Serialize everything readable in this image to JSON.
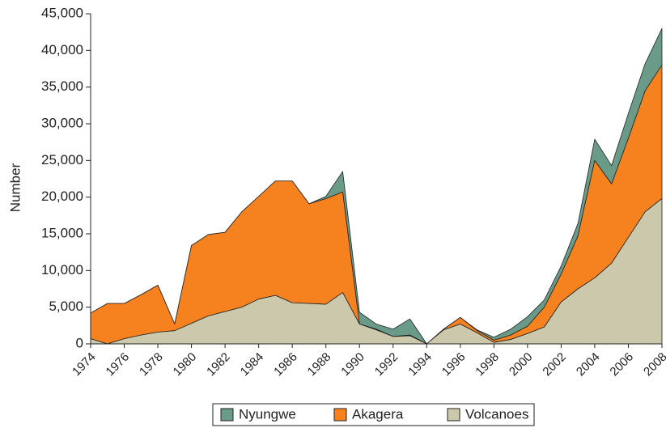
{
  "chart_data": {
    "type": "area",
    "stacked": true,
    "y_label": "Number",
    "x": [
      1974,
      1975,
      1976,
      1977,
      1978,
      1979,
      1980,
      1981,
      1982,
      1983,
      1984,
      1985,
      1986,
      1987,
      1988,
      1989,
      1990,
      1991,
      1992,
      1993,
      1994,
      1995,
      1996,
      1997,
      1998,
      1999,
      2000,
      2001,
      2002,
      2003,
      2004,
      2005,
      2006,
      2007,
      2008
    ],
    "series": [
      {
        "name": "Volcanoes",
        "color": "#cbc8ab",
        "values": [
          700,
          0,
          700,
          1200,
          1600,
          1800,
          2800,
          3800,
          4400,
          5000,
          6100,
          6600,
          5600,
          5500,
          5400,
          7000,
          2700,
          1900,
          1000,
          1100,
          0,
          1900,
          2700,
          1500,
          200,
          600,
          1400,
          2300,
          5700,
          7500,
          9000,
          11000,
          14500,
          18000,
          19800
        ]
      },
      {
        "name": "Akagera",
        "color": "#f5821f",
        "values": [
          3500,
          5500,
          4800,
          5500,
          6400,
          900,
          10600,
          11100,
          10800,
          13000,
          14000,
          15600,
          16600,
          13600,
          14400,
          13700,
          0,
          100,
          0,
          100,
          0,
          100,
          900,
          300,
          300,
          600,
          1000,
          2700,
          3800,
          7200,
          16000,
          10800,
          13500,
          16500,
          18200
        ]
      },
      {
        "name": "Nyungwe",
        "color": "#6a9a88",
        "values": [
          0,
          0,
          0,
          0,
          0,
          0,
          0,
          0,
          0,
          0,
          0,
          0,
          0,
          0,
          300,
          2800,
          1600,
          700,
          1000,
          2200,
          0,
          0,
          0,
          100,
          400,
          800,
          1300,
          1000,
          1100,
          1700,
          2900,
          2500,
          3400,
          3700,
          5000
        ]
      }
    ],
    "legend_order": [
      "Nyungwe",
      "Akagera",
      "Volcanoes"
    ],
    "xlim": [
      1974,
      2008
    ],
    "xticks": [
      1974,
      1976,
      1978,
      1980,
      1982,
      1984,
      1986,
      1988,
      1990,
      1992,
      1994,
      1996,
      1998,
      2000,
      2002,
      2004,
      2006,
      2008
    ],
    "ylim": [
      0,
      45000
    ],
    "yticks": [
      0,
      {
        "value": 5000,
        "label": "5,000"
      },
      {
        "value": 10000,
        "label": "10,000"
      },
      {
        "value": 15000,
        "label": "15,000"
      },
      {
        "value": 20000,
        "label": "20,000"
      },
      {
        "value": 25000,
        "label": "25,000"
      },
      {
        "value": 30000,
        "label": "30,000"
      },
      {
        "value": 35000,
        "label": "35,000"
      },
      {
        "value": 40000,
        "label": "40,000"
      },
      {
        "value": 45000,
        "label": "45,000"
      }
    ],
    "legend_position": "bottom"
  }
}
